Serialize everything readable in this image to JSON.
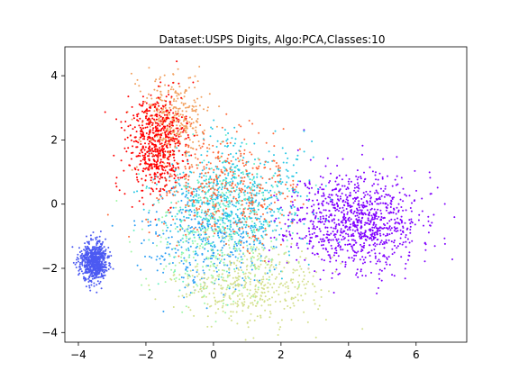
{
  "chart_data": {
    "type": "scatter",
    "title": "Dataset:USPS Digits, Algo:PCA,Classes:10",
    "xlabel": "",
    "ylabel": "",
    "xlim": [
      -4.4,
      7.5
    ],
    "ylim": [
      -4.3,
      4.9
    ],
    "xticks": [
      -4,
      -2,
      0,
      2,
      4,
      6
    ],
    "yticks": [
      -4,
      -2,
      0,
      2,
      4
    ],
    "grid": false,
    "legend": "none",
    "series": [
      {
        "color": "#8000ff",
        "center": [
          4.2,
          -0.5
        ],
        "spread": [
          0.95,
          0.75
        ],
        "count": 1000,
        "seed": 11
      },
      {
        "color": "#4c5af2",
        "center": [
          -3.55,
          -1.8
        ],
        "spread": [
          0.2,
          0.3
        ],
        "count": 700,
        "seed": 23
      },
      {
        "color": "#2c9ef4",
        "center": [
          -0.2,
          -1.0
        ],
        "spread": [
          0.9,
          0.8
        ],
        "count": 350,
        "seed": 37
      },
      {
        "color": "#26c7e4",
        "center": [
          0.6,
          0.2
        ],
        "spread": [
          1.1,
          0.9
        ],
        "count": 600,
        "seed": 41
      },
      {
        "color": "#6af0c7",
        "center": [
          0.3,
          -0.3
        ],
        "spread": [
          1.0,
          1.0
        ],
        "count": 250,
        "seed": 53
      },
      {
        "color": "#a2f7a6",
        "center": [
          0.0,
          -1.6
        ],
        "spread": [
          1.0,
          0.8
        ],
        "count": 200,
        "seed": 59
      },
      {
        "color": "#d4e08e",
        "center": [
          1.0,
          -2.6
        ],
        "spread": [
          1.0,
          0.6
        ],
        "count": 450,
        "seed": 67
      },
      {
        "color": "#f2a05e",
        "center": [
          -1.2,
          2.6
        ],
        "spread": [
          0.5,
          0.7
        ],
        "count": 350,
        "seed": 71
      },
      {
        "color": "#ff6a3a",
        "center": [
          0.3,
          0.6
        ],
        "spread": [
          1.1,
          0.9
        ],
        "count": 400,
        "seed": 79
      },
      {
        "color": "#ff0000",
        "center": [
          -1.7,
          1.9
        ],
        "spread": [
          0.45,
          0.75
        ],
        "count": 600,
        "seed": 83
      }
    ]
  }
}
